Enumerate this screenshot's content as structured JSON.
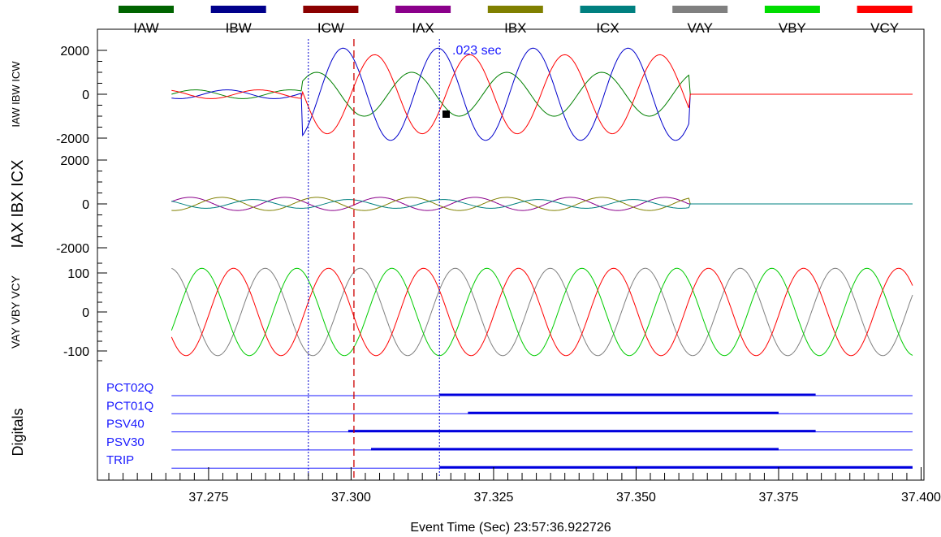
{
  "chart_data": {
    "type": "line",
    "legend": {
      "position": "top",
      "entries": [
        {
          "name": "IAW",
          "color": "#006400"
        },
        {
          "name": "IBW",
          "color": "#00008b"
        },
        {
          "name": "ICW",
          "color": "#8b0000"
        },
        {
          "name": "IAX",
          "color": "#8b008b"
        },
        {
          "name": "IBX",
          "color": "#808000"
        },
        {
          "name": "ICX",
          "color": "#008080"
        },
        {
          "name": "VAY",
          "color": "#808080"
        },
        {
          "name": "VBY",
          "color": "#00dd00"
        },
        {
          "name": "VCY",
          "color": "#ff0000"
        }
      ]
    },
    "xlabel": "Event Time (Sec)  23:57:36.922726",
    "xlim": [
      37.2555,
      37.4005
    ],
    "xticks": [
      "37.275",
      "37.300",
      "37.325",
      "37.350",
      "37.375",
      "37.400"
    ],
    "data_start": 37.2685,
    "data_end": 37.3985,
    "cycle_period": 0.016667,
    "cursors": [
      {
        "x": 37.2925,
        "style": "dotted",
        "color": "#0000cc"
      },
      {
        "x": 37.3005,
        "style": "dashed",
        "color": "#cc0000"
      },
      {
        "x": 37.3155,
        "style": "dotted",
        "color": "#0000cc"
      }
    ],
    "cursor_annotation": ".023 sec",
    "panels": [
      {
        "ylabel": "IAW IBW ICW",
        "yticks": [
          "2000",
          "0",
          "-2000"
        ],
        "ylim": [
          -2000,
          2000
        ],
        "series": [
          {
            "name": "IAW",
            "color": "#008000",
            "segments": [
              {
                "until": 37.2915,
                "amp": 200,
                "phase": 0
              },
              {
                "until": 37.3595,
                "amp": 1000,
                "phase": -100
              },
              {
                "until": 37.3985,
                "amp": 0,
                "phase": 0
              }
            ]
          },
          {
            "name": "IBW",
            "color": "#0000cc",
            "segments": [
              {
                "until": 37.2915,
                "amp": 200,
                "phase": -120
              },
              {
                "until": 37.3595,
                "amp": 2100,
                "phase": 160
              },
              {
                "until": 37.3985,
                "amp": 0,
                "phase": 0
              }
            ]
          },
          {
            "name": "ICW",
            "color": "#ff0000",
            "segments": [
              {
                "until": 37.2915,
                "amp": 200,
                "phase": 120
              },
              {
                "until": 37.3595,
                "amp": 1800,
                "phase": 40
              },
              {
                "until": 37.3985,
                "amp": 0,
                "phase": 0
              }
            ]
          }
        ]
      },
      {
        "ylabel": "IAX IBX ICX",
        "yticks": [
          "2000",
          "0",
          "-2000"
        ],
        "ylim": [
          -2000,
          2000
        ],
        "series": [
          {
            "name": "IAX",
            "color": "#8b008b",
            "segments": [
              {
                "until": 37.3595,
                "amp": 300,
                "phase": 20
              },
              {
                "until": 37.3985,
                "amp": 0,
                "phase": 0
              }
            ]
          },
          {
            "name": "IBX",
            "color": "#808000",
            "segments": [
              {
                "until": 37.3595,
                "amp": 300,
                "phase": -100
              },
              {
                "until": 37.3985,
                "amp": 0,
                "phase": 0
              }
            ]
          },
          {
            "name": "ICX",
            "color": "#008080",
            "segments": [
              {
                "until": 37.3595,
                "amp": 200,
                "phase": 140
              },
              {
                "until": 37.3985,
                "amp": 0,
                "phase": 0
              }
            ]
          }
        ]
      },
      {
        "ylabel": "VAY VBY VCY",
        "yticks": [
          "100",
          "0",
          "-100"
        ],
        "ylim": [
          -140,
          140
        ],
        "series": [
          {
            "name": "VAY",
            "color": "#808080",
            "segments": [
              {
                "until": 37.3985,
                "amp": 112,
                "phase": 95
              }
            ]
          },
          {
            "name": "VBY",
            "color": "#00cc00",
            "segments": [
              {
                "until": 37.3985,
                "amp": 112,
                "phase": -25
              }
            ]
          },
          {
            "name": "VCY",
            "color": "#ff0000",
            "segments": [
              {
                "until": 37.3985,
                "amp": 112,
                "phase": -145
              }
            ]
          }
        ]
      }
    ],
    "digitals": {
      "label": "Digitals",
      "channels": [
        {
          "name": "PCT02Q",
          "on": 37.3155,
          "off": 37.3815
        },
        {
          "name": "PCT01Q",
          "on": 37.3205,
          "off": 37.375
        },
        {
          "name": "PSV40",
          "on": 37.2995,
          "off": 37.3815
        },
        {
          "name": "PSV30",
          "on": 37.3035,
          "off": 37.375
        },
        {
          "name": "TRIP",
          "on": 37.3155,
          "off": 37.3985
        }
      ]
    }
  }
}
